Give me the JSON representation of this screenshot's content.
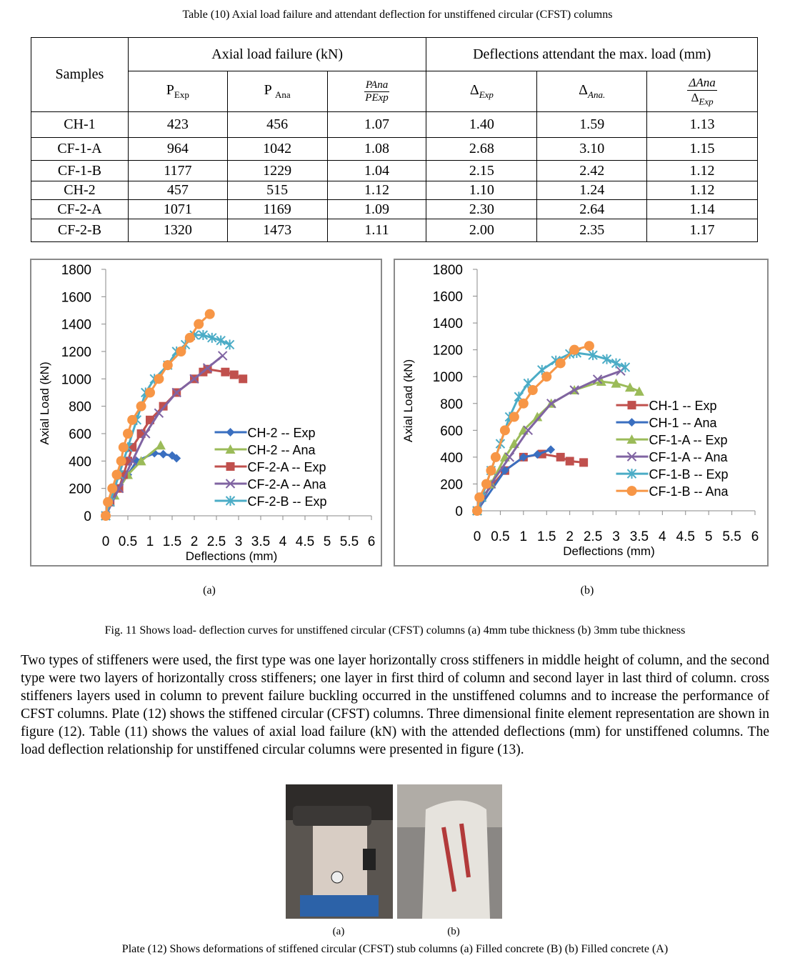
{
  "table_title": "Table (10) Axial load failure and attendant deflection for unstiffened circular (CFST) columns",
  "table": {
    "header": {
      "samples": "Samples",
      "group1": "Axial load failure (kN)",
      "group2": "Deflections attendant the max. load (mm)",
      "p_exp": {
        "main": "P",
        "sub": "Exp"
      },
      "p_ana": {
        "main": "P ",
        "sub": "Ana"
      },
      "p_ratio": {
        "num": "PAna",
        "den": "PExp"
      },
      "d_exp": {
        "main": "Δ",
        "sub": "Exp"
      },
      "d_ana": {
        "main": "Δ",
        "sub": "Ana."
      },
      "d_ratio": {
        "num": "ΔAna",
        "den": {
          "main": "Δ",
          "sub": "Exp"
        }
      }
    },
    "rows": [
      [
        "CH-1",
        "423",
        "456",
        "1.07",
        "1.40",
        "1.59",
        "1.13"
      ],
      [
        "CF-1-A",
        "964",
        "1042",
        "1.08",
        "2.68",
        "3.10",
        "1.15"
      ],
      [
        "CF-1-B",
        "1177",
        "1229",
        "1.04",
        "2.15",
        "2.42",
        "1.12"
      ],
      [
        "CH-2",
        "457",
        "515",
        "1.12",
        "1.10",
        "1.24",
        "1.12"
      ],
      [
        "CF-2-A",
        "1071",
        "1169",
        "1.09",
        "2.30",
        "2.64",
        "1.14"
      ],
      [
        "CF-2-B",
        "1320",
        "1473",
        "1.11",
        "2.00",
        "2.35",
        "1.17"
      ]
    ]
  },
  "chart_data": [
    {
      "type": "line",
      "xlabel": "Deflections (mm)",
      "ylabel": "Axial Load (kN)",
      "xlim": [
        0,
        6
      ],
      "xticks": [
        0,
        0.5,
        1,
        1.5,
        2,
        2.5,
        3,
        3.5,
        4,
        4.5,
        5,
        5.5,
        6
      ],
      "ylim": [
        0,
        1800
      ],
      "yticks": [
        0,
        200,
        400,
        600,
        800,
        1000,
        1200,
        1400,
        1600,
        1800
      ],
      "legend": "lower right",
      "caption": "(a)",
      "series": [
        {
          "name": "CH-2 -- Exp",
          "color": "#3a6fc0",
          "marker": "diamond",
          "x": [
            0,
            0.1,
            0.3,
            0.5,
            0.7,
            1.1,
            1.3,
            1.5,
            1.6
          ],
          "values": [
            0,
            100,
            200,
            300,
            400,
            457,
            450,
            440,
            420
          ]
        },
        {
          "name": "CH-2 -- Ana",
          "color": "#9bbb59",
          "marker": "triangle",
          "x": [
            0,
            0.2,
            0.5,
            0.8,
            1.24
          ],
          "values": [
            0,
            150,
            300,
            400,
            515
          ]
        },
        {
          "name": "CF-2-A -- Exp",
          "color": "#c0504d",
          "marker": "square",
          "x": [
            0,
            0.1,
            0.3,
            0.4,
            0.5,
            0.6,
            0.8,
            1.0,
            1.3,
            1.6,
            2.0,
            2.2,
            2.3,
            2.7,
            2.9,
            3.1
          ],
          "values": [
            0,
            100,
            200,
            300,
            400,
            500,
            600,
            700,
            800,
            900,
            1000,
            1050,
            1071,
            1050,
            1030,
            1000
          ]
        },
        {
          "name": "CF-2-A -- Ana",
          "color": "#8064a2",
          "marker": "x",
          "x": [
            0,
            0.3,
            0.6,
            0.9,
            1.2,
            1.6,
            2.0,
            2.3,
            2.64
          ],
          "values": [
            0,
            200,
            400,
            600,
            750,
            900,
            1000,
            1080,
            1169
          ]
        },
        {
          "name": "CF-2-B -- Exp",
          "color": "#4bacc6",
          "marker": "star",
          "x": [
            0,
            0.1,
            0.3,
            0.5,
            0.7,
            0.9,
            1.1,
            1.4,
            1.6,
            1.8,
            2.0,
            2.2,
            2.4,
            2.6,
            2.8
          ],
          "values": [
            0,
            100,
            300,
            500,
            700,
            900,
            1000,
            1100,
            1200,
            1250,
            1320,
            1320,
            1300,
            1280,
            1250
          ]
        },
        {
          "color": "#f79646",
          "marker": "circle",
          "x": [
            0,
            0.05,
            0.15,
            0.25,
            0.35,
            0.4,
            0.5,
            0.6,
            0.8,
            1.0,
            1.2,
            1.4,
            1.7,
            1.9,
            2.1,
            2.35
          ],
          "values": [
            0,
            100,
            200,
            300,
            400,
            500,
            600,
            700,
            800,
            900,
            1000,
            1100,
            1200,
            1300,
            1400,
            1473
          ]
        }
      ]
    },
    {
      "type": "line",
      "xlabel": "Deflections (mm)",
      "ylabel": "Axial Load (kN)",
      "xlim": [
        0,
        6
      ],
      "xticks": [
        0,
        0.5,
        1,
        1.5,
        2,
        2.5,
        3,
        3.5,
        4,
        4.5,
        5,
        5.5,
        6
      ],
      "ylim": [
        0,
        1800
      ],
      "yticks": [
        0,
        200,
        400,
        600,
        800,
        1000,
        1200,
        1400,
        1600,
        1800
      ],
      "legend": "center right",
      "caption": "(b)",
      "series": [
        {
          "name": "CH-1 -- Exp",
          "color": "#c0504d",
          "marker": "square",
          "x": [
            0,
            0.1,
            0.6,
            1.0,
            1.4,
            1.8,
            2.0,
            2.3
          ],
          "values": [
            0,
            100,
            300,
            400,
            423,
            400,
            370,
            360
          ]
        },
        {
          "name": "CH-1 -- Ana",
          "color": "#3a6fc0",
          "marker": "diamond",
          "x": [
            0,
            0.6,
            1.0,
            1.3,
            1.59
          ],
          "values": [
            0,
            300,
            400,
            420,
            456
          ]
        },
        {
          "name": "CF-1-A -- Exp",
          "color": "#9bbb59",
          "marker": "triangle",
          "x": [
            0,
            0.3,
            0.6,
            0.8,
            1.0,
            1.3,
            1.6,
            2.1,
            2.68,
            3.0,
            3.3,
            3.5
          ],
          "values": [
            0,
            200,
            400,
            500,
            600,
            700,
            800,
            900,
            964,
            950,
            920,
            890
          ]
        },
        {
          "name": "CF-1-A -- Ana",
          "color": "#8064a2",
          "marker": "x",
          "x": [
            0,
            0.3,
            0.7,
            1.1,
            1.6,
            2.1,
            2.6,
            3.1
          ],
          "values": [
            0,
            200,
            400,
            600,
            800,
            900,
            980,
            1042
          ]
        },
        {
          "name": "CF-1-B -- Exp",
          "color": "#4bacc6",
          "marker": "star",
          "x": [
            0,
            0.1,
            0.3,
            0.5,
            0.7,
            0.9,
            1.1,
            1.4,
            1.7,
            2.0,
            2.15,
            2.5,
            2.8,
            3.0,
            3.2
          ],
          "values": [
            0,
            100,
            300,
            500,
            700,
            850,
            950,
            1050,
            1120,
            1170,
            1177,
            1160,
            1130,
            1100,
            1070
          ]
        },
        {
          "name": "CF-1-B -- Ana",
          "color": "#f79646",
          "marker": "circle",
          "x": [
            0,
            0.05,
            0.2,
            0.3,
            0.4,
            0.6,
            0.8,
            1.0,
            1.2,
            1.5,
            1.8,
            2.1,
            2.42
          ],
          "values": [
            0,
            100,
            200,
            300,
            400,
            600,
            700,
            800,
            900,
            1000,
            1100,
            1200,
            1229
          ]
        }
      ]
    }
  ],
  "figure_caption": "Fig. 11 Shows load- deflection curves for unstiffened circular (CFST) columns (a) 4mm tube thickness  (b) 3mm tube thickness",
  "paragraph": "Two types of stiffeners were used, the first type was one layer horizontally cross stiffeners in middle height of column, and the second  type were two layers of  horizontally cross stiffeners; one layer in first third of column and second layer in last third of column. cross stiffeners layers used  in column to prevent failure buckling occurred in the unstiffened columns and to increase the performance of CFST columns. Plate (12) shows the  stiffened circular (CFST) columns. Three dimensional finite element representation are shown in figure (12). Table (11) shows the values of axial load failure (kN) with the attended deflections (mm) for unstiffened columns. The load deflection relationship for unstiffened circular columns were presented in figure (13).",
  "plate": {
    "label_a": "(a)",
    "label_b": "(b)",
    "caption": "Plate (12) Shows deformations of stiffened circular (CFST) stub columns (a) Filled concrete (B)  (b) Filled concrete (A)"
  }
}
